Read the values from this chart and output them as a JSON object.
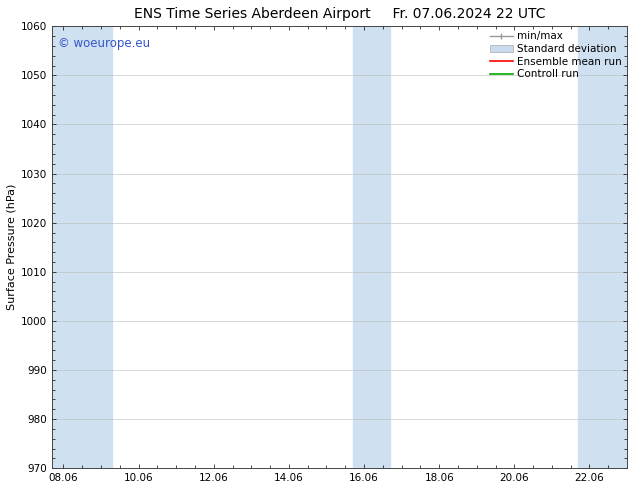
{
  "title": "ENS Time Series Aberdeen Airport",
  "title2": "Fr. 07.06.2024 22 UTC",
  "ylabel": "Surface Pressure (hPa)",
  "ylim": [
    970,
    1060
  ],
  "yticks": [
    970,
    980,
    990,
    1000,
    1010,
    1020,
    1030,
    1040,
    1050,
    1060
  ],
  "xtick_labels": [
    "08.06",
    "10.06",
    "12.06",
    "14.06",
    "16.06",
    "18.06",
    "20.06",
    "22.06"
  ],
  "xtick_positions": [
    0,
    2,
    4,
    6,
    8,
    10,
    12,
    14
  ],
  "xlim": [
    -0.3,
    15.0
  ],
  "shaded_bands": [
    {
      "x_start": -0.3,
      "x_end": 1.3
    },
    {
      "x_start": 7.7,
      "x_end": 8.7
    },
    {
      "x_start": 13.7,
      "x_end": 15.0
    }
  ],
  "band_color": "#cfe0f0",
  "background_color": "#ffffff",
  "watermark_text": "© woeurope.eu",
  "watermark_color": "#3355cc",
  "legend_labels": [
    "min/max",
    "Standard deviation",
    "Ensemble mean run",
    "Controll run"
  ],
  "legend_colors": [
    "#999999",
    "#c8dced",
    "#ff0000",
    "#00aa00"
  ],
  "font_size_title": 10,
  "font_size_axis": 8,
  "font_size_ticks": 7.5,
  "font_size_legend": 7.5,
  "font_size_watermark": 8.5
}
